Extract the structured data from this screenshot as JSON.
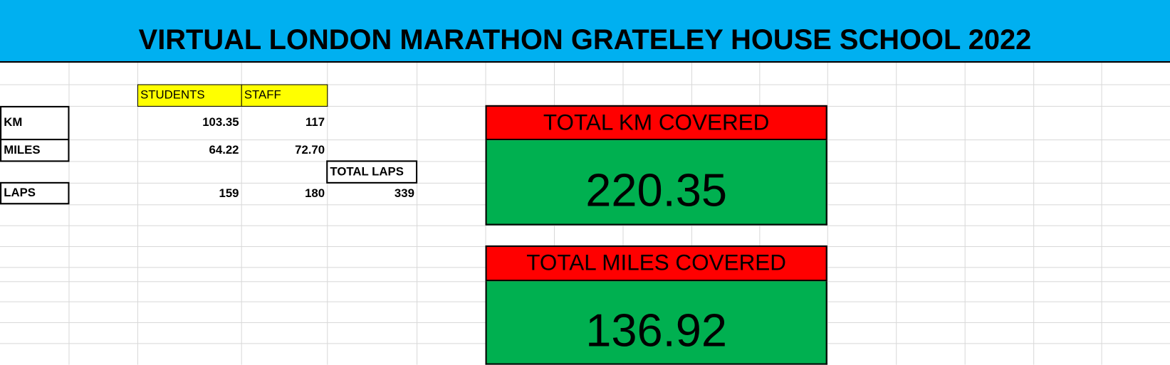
{
  "header": {
    "title": "VIRTUAL LONDON MARATHON GRATELEY HOUSE SCHOOL 2022"
  },
  "table": {
    "columns": [
      "STUDENTS",
      "STAFF"
    ],
    "rows": [
      {
        "label": "KM",
        "values": [
          "103.35",
          "117"
        ]
      },
      {
        "label": "MILES",
        "values": [
          "64.22",
          "72.70"
        ]
      },
      {
        "label": "LAPS",
        "values": [
          "159",
          "180"
        ]
      }
    ],
    "total_laps": {
      "label": "TOTAL LAPS",
      "value": "339"
    }
  },
  "summary": [
    {
      "label": "TOTAL KM COVERED",
      "value": "220.35"
    },
    {
      "label": "TOTAL MILES COVERED",
      "value": "136.92"
    }
  ]
}
